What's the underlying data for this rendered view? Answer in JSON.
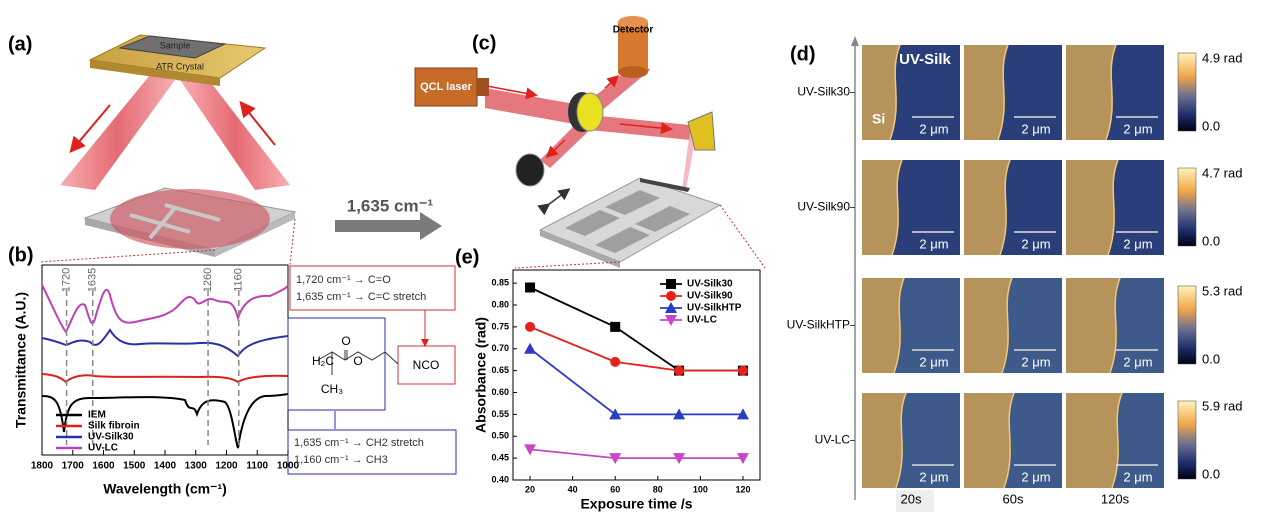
{
  "panel_labels": [
    "(a)",
    "(b)",
    "(c)",
    "(d)",
    "(e)"
  ],
  "panel_a": {
    "sample": "Sample",
    "crystal": "ATR Crystal"
  },
  "arrow_label": "1,635 cm⁻¹",
  "panel_b": {
    "y_label": "Transmittance (A.U.)",
    "x_label": "Wavelength (cm⁻¹)",
    "x_ticks": [
      1800,
      1700,
      1600,
      1500,
      1400,
      1300,
      1200,
      1100,
      1000
    ],
    "peaks": [
      1720,
      1635,
      1260,
      1160
    ],
    "legend": [
      {
        "name": "IEM",
        "color": "#000000"
      },
      {
        "name": "Silk fibroin",
        "color": "#e0201b"
      },
      {
        "name": "UV-Silk30",
        "color": "#2b2fa8"
      },
      {
        "name": "UV-LC",
        "color": "#c040b8"
      }
    ],
    "notes_red": [
      "1,720 cm⁻¹ → C=O",
      "1,635 cm⁻¹ → C=C stretch"
    ],
    "notes_blue": [
      "1,635 cm⁻¹ → CH2 stretch",
      "1,160 cm⁻¹ → CH3"
    ],
    "molecule": {
      "h2c": "H₂C",
      "o_top": "O",
      "o": "O",
      "ch3": "CH₃",
      "nco": "NCO"
    }
  },
  "panel_c": {
    "detector": "Detector",
    "laser": "QCL laser"
  },
  "panel_d": {
    "rows": [
      {
        "label": "UV-Silk30",
        "max": "4.9 rad",
        "min": "0.0"
      },
      {
        "label": "UV-Silk90",
        "max": "4.7 rad",
        "min": "0.0"
      },
      {
        "label": "UV-SilkHTP",
        "max": "5.3 rad",
        "min": "0.0"
      },
      {
        "label": "UV-LC",
        "max": "5.9 rad",
        "min": "0.0"
      }
    ],
    "columns": [
      "20s",
      "60s",
      "120s"
    ],
    "scale_bar": "2 μm",
    "material": "UV-Silk",
    "substrate": "Si"
  },
  "chart_data": {
    "type": "line",
    "x_label": "Exposure time /s",
    "y_label": "Absorbance (rad)",
    "x": [
      20,
      60,
      90,
      120
    ],
    "xlim": [
      12,
      128
    ],
    "xticks": [
      20,
      40,
      60,
      80,
      100,
      120
    ],
    "ylim": [
      0.4,
      0.88
    ],
    "yticks": [
      {
        "value": 0.4,
        "label": "0.40"
      },
      0.45,
      {
        "value": 0.5,
        "label": "0.50"
      },
      0.55,
      {
        "value": 0.6,
        "label": "0.60"
      },
      0.65,
      {
        "value": 0.7,
        "label": "0.70"
      },
      0.75,
      {
        "value": 0.8,
        "label": "0.80"
      },
      0.85
    ],
    "legend": "upper right",
    "series": [
      {
        "name": "UV-Silk30",
        "color": "#000000",
        "marker": "square",
        "values": [
          0.84,
          0.75,
          0.65,
          0.65
        ]
      },
      {
        "name": "UV-Silk90",
        "color": "#e8201c",
        "marker": "circle",
        "values": [
          0.75,
          0.67,
          0.65,
          0.65
        ]
      },
      {
        "name": "UV-SilkHTP",
        "color": "#2b3cc4",
        "marker": "triangle",
        "values": [
          0.7,
          0.55,
          0.55,
          0.55
        ]
      },
      {
        "name": "UV-LC",
        "color": "#c846c8",
        "marker": "triangle-down",
        "values": [
          0.47,
          0.45,
          0.45,
          0.45
        ]
      }
    ]
  }
}
